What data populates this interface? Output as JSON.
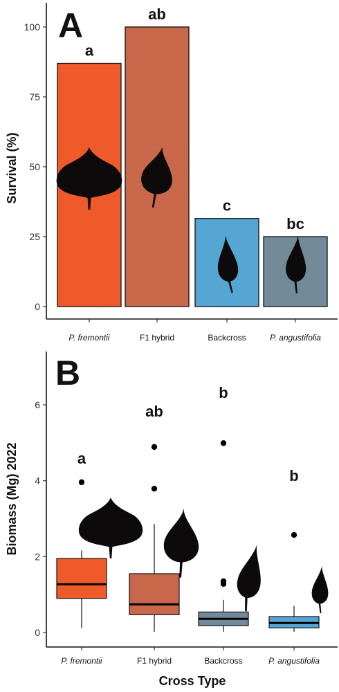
{
  "chart_data": [
    {
      "type": "bar",
      "panel": "A",
      "title": "",
      "xlabel": "",
      "ylabel": "Survival (%)",
      "ylim": [
        0,
        100
      ],
      "yticks": [
        0,
        25,
        50,
        75,
        100
      ],
      "grid": false,
      "categories": [
        "P. fremontii",
        "F1 hybrid",
        "Backcross",
        "P. angustifolia"
      ],
      "italic_categories": [
        true,
        false,
        false,
        true
      ],
      "values": [
        87,
        100,
        31.5,
        25
      ],
      "letters": [
        "a",
        "ab",
        "c",
        "bc"
      ],
      "colors": [
        "#ef5a2a",
        "#c9674a",
        "#56a6d3",
        "#738a99"
      ],
      "leaf_icons": [
        "leaf-cordate-icon",
        "leaf-ovate-icon",
        "leaf-lanceolate-icon",
        "leaf-lanceolate-icon"
      ]
    },
    {
      "type": "box",
      "panel": "B",
      "title": "",
      "xlabel": "Cross Type",
      "ylabel": "Biomass (Mg) 2022",
      "ylim": [
        -0.15,
        7.2
      ],
      "yticks": [
        0,
        2,
        4,
        6
      ],
      "grid": false,
      "categories": [
        "P. fremontii",
        "F1 hybrid",
        "Backcross",
        "P. angustifolia"
      ],
      "italic_categories": [
        true,
        false,
        false,
        true
      ],
      "boxes": [
        {
          "whisker_low": 0.12,
          "q1": 0.9,
          "median": 1.27,
          "q3": 1.95,
          "whisker_high": 2.16,
          "outliers": [
            3.96
          ]
        },
        {
          "whisker_low": 0.02,
          "q1": 0.47,
          "median": 0.74,
          "q3": 1.55,
          "whisker_high": 2.86,
          "outliers": [
            3.79,
            4.89
          ]
        },
        {
          "whisker_low": 0.02,
          "q1": 0.18,
          "median": 0.36,
          "q3": 0.54,
          "whisker_high": 0.86,
          "outliers": [
            1.28,
            1.35,
            4.99
          ]
        },
        {
          "whisker_low": 0.02,
          "q1": 0.12,
          "median": 0.25,
          "q3": 0.42,
          "whisker_high": 0.7,
          "outliers": [
            2.57
          ]
        }
      ],
      "letters": [
        "a",
        "ab",
        "b",
        "b"
      ],
      "colors": [
        "#ef5a2a",
        "#c9674a",
        "#738a99",
        "#56a6d3"
      ],
      "leaf_icons": [
        "leaf-cordate-icon",
        "leaf-ovate-icon",
        "leaf-lanceolate-icon",
        "leaf-lanceolate-icon"
      ]
    }
  ],
  "panels": {
    "a_label": "A",
    "b_label": "B"
  }
}
